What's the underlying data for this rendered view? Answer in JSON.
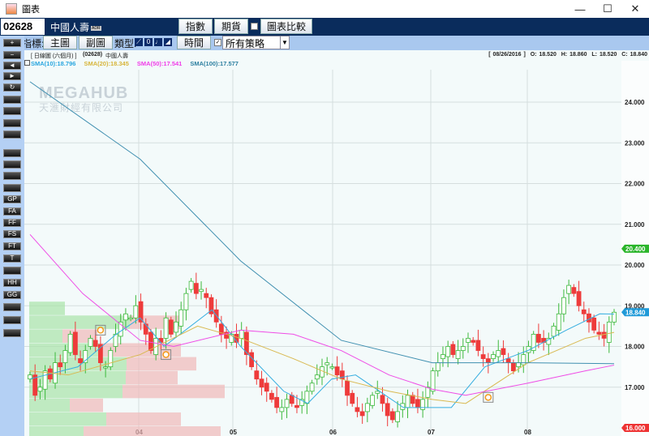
{
  "window": {
    "title": "圖表",
    "minimize": "—",
    "maximize": "☐",
    "close": "✕"
  },
  "header": {
    "code": "02628",
    "name": "中國人壽",
    "badge": "ADR",
    "index_btn": "指數",
    "futures_btn": "期貨",
    "compare_btn": "圖表比較",
    "compare_checked": false
  },
  "toolbar": {
    "indicator_label": "指標:",
    "main_btn": "主圖",
    "sub_btn": "副圖",
    "type_label": "類型:",
    "types": [
      "line-chart-icon",
      "0",
      "bar-icon",
      "area-icon"
    ],
    "time_btn": "時間",
    "strategy_checked": true,
    "strategy_value": "所有策略"
  },
  "sidebar": {
    "buttons": [
      "plus",
      "minus",
      "left",
      "right",
      "refresh",
      "zoom-in",
      "zoom-out",
      "save",
      "print",
      "ellipse",
      "rectangle",
      "line",
      "fibonacci",
      "gp",
      "fa",
      "ff",
      "fs",
      "ft",
      "t",
      "channel",
      "hh",
      "gg",
      "horizontal-line",
      "vertical-line",
      "text"
    ],
    "labels": {
      "plus": "+",
      "minus": "−",
      "left": "◄",
      "right": "►",
      "refresh": "↻",
      "gp": "GP",
      "fa": "FA",
      "ff": "FF",
      "fs": "FS",
      "ft": "FT",
      "t": "T",
      "hh": "HH",
      "gg": "GG"
    }
  },
  "chart_info": {
    "period": "[ 日線圖 (六個月) ]",
    "code": "(02628)",
    "name": "中國人壽",
    "date": "[ 08/26/2016 ]",
    "open": "O: 18.520",
    "high": "H: 18.860",
    "low": "L: 18.520",
    "close": "C: 18.840"
  },
  "sma_labels": [
    {
      "text": "SMA(10):18.796",
      "color": "#29a6df"
    },
    {
      "text": "SMA(20):18.345",
      "color": "#d7b53a"
    },
    {
      "text": "SMA(50):17.541",
      "color": "#f03ce8"
    },
    {
      "text": "SMA(100):17.577",
      "color": "#2d7fa0"
    }
  ],
  "watermark": {
    "brand": "MEGAHUB",
    "company": "天滙財經有限公司"
  },
  "chart_data": {
    "type": "candlestick",
    "ylim": [
      16,
      24.5
    ],
    "y_ticks": [
      "24.000",
      "23.000",
      "22.000",
      "21.000",
      "20.000",
      "19.000",
      "18.000",
      "17.000"
    ],
    "x_ticks": [
      "04",
      "05",
      "06",
      "07",
      "08"
    ],
    "badges": [
      {
        "text": "20.400",
        "value": 20.4,
        "color": "#2bb52b"
      },
      {
        "text": "18.840",
        "value": 18.84,
        "color": "#1f9ad8"
      },
      {
        "text": "16.000",
        "value": 16.0,
        "color": "#ee3333"
      }
    ],
    "close": [
      17.3,
      16.8,
      17.0,
      17.4,
      17.2,
      17.6,
      17.5,
      17.9,
      18.3,
      17.8,
      17.6,
      17.9,
      18.2,
      18.0,
      17.6,
      17.5,
      17.9,
      18.3,
      18.6,
      18.8,
      18.7,
      19.0,
      18.6,
      18.3,
      17.9,
      18.2,
      18.1,
      18.7,
      18.3,
      18.6,
      18.9,
      19.3,
      19.6,
      19.3,
      19.4,
      19.2,
      18.8,
      18.6,
      18.3,
      18.2,
      18.3,
      18.1,
      18.4,
      17.8,
      17.5,
      17.2,
      17.0,
      16.9,
      16.7,
      16.5,
      16.5,
      16.7,
      16.6,
      16.5,
      16.7,
      16.9,
      17.1,
      17.3,
      17.5,
      17.6,
      17.5,
      17.3,
      17.2,
      16.8,
      16.6,
      16.4,
      16.3,
      16.6,
      16.8,
      16.9,
      16.6,
      16.3,
      16.2,
      16.4,
      16.6,
      16.8,
      16.6,
      16.5,
      16.7,
      17.0,
      17.4,
      17.6,
      17.8,
      18.0,
      17.8,
      17.9,
      18.0,
      18.2,
      18.1,
      17.9,
      17.7,
      17.6,
      17.8,
      17.9,
      17.8,
      17.6,
      17.4,
      17.6,
      17.8,
      18.0,
      18.3,
      18.1,
      18.1,
      18.2,
      18.5,
      18.8,
      19.2,
      19.5,
      19.3,
      19.0,
      18.8,
      18.6,
      18.4,
      18.3,
      18.2,
      18.6,
      18.84
    ],
    "sma": [
      {
        "name": "SMA(10)",
        "color": "#36aee0",
        "points": [
          [
            0,
            17.2
          ],
          [
            10,
            17.5
          ],
          [
            18,
            18.3
          ],
          [
            23,
            18.7
          ],
          [
            28,
            18.0
          ],
          [
            38,
            18.9
          ],
          [
            44,
            18.0
          ],
          [
            53,
            16.9
          ],
          [
            58,
            16.6
          ],
          [
            63,
            17.2
          ],
          [
            68,
            17.3
          ],
          [
            78,
            16.5
          ],
          [
            88,
            16.5
          ],
          [
            95,
            17.5
          ],
          [
            104,
            17.9
          ],
          [
            112,
            18.4
          ],
          [
            119,
            18.8
          ],
          [
            122,
            18.796
          ]
        ]
      },
      {
        "name": "SMA(20)",
        "color": "#d9b950",
        "points": [
          [
            0,
            17.4
          ],
          [
            8,
            17.3
          ],
          [
            23,
            17.8
          ],
          [
            35,
            18.5
          ],
          [
            44,
            18.2
          ],
          [
            55,
            17.7
          ],
          [
            65,
            17.2
          ],
          [
            75,
            16.9
          ],
          [
            84,
            16.7
          ],
          [
            91,
            16.6
          ],
          [
            104,
            17.6
          ],
          [
            116,
            18.2
          ],
          [
            122,
            18.345
          ]
        ]
      },
      {
        "name": "SMA(50)",
        "color": "#ef4ce6",
        "points": [
          [
            0,
            20.75
          ],
          [
            11,
            19.3
          ],
          [
            23,
            18.15
          ],
          [
            30,
            18.0
          ],
          [
            44,
            18.4
          ],
          [
            55,
            18.3
          ],
          [
            65,
            17.9
          ],
          [
            75,
            17.3
          ],
          [
            84,
            16.95
          ],
          [
            91,
            16.8
          ],
          [
            104,
            17.1
          ],
          [
            116,
            17.4
          ],
          [
            122,
            17.541
          ]
        ]
      },
      {
        "name": "SMA(100)",
        "color": "#3f8fb0",
        "points": [
          [
            0,
            24.5
          ],
          [
            23,
            22.6
          ],
          [
            44,
            20.1
          ],
          [
            65,
            18.15
          ],
          [
            84,
            17.6
          ],
          [
            104,
            17.6
          ],
          [
            122,
            17.577
          ]
        ]
      }
    ],
    "volume_profile": [
      {
        "price": [
          18.76,
          19.1
        ],
        "buy": 44,
        "sell": 0
      },
      {
        "price": [
          18.42,
          18.76
        ],
        "buy": 124,
        "sell": 62
      },
      {
        "price": [
          18.08,
          18.42
        ],
        "buy": 41,
        "sell": 43
      },
      {
        "price": [
          17.74,
          18.08
        ],
        "buy": 87,
        "sell": 100
      },
      {
        "price": [
          17.4,
          17.74
        ],
        "buy": 120,
        "sell": 86
      },
      {
        "price": [
          17.06,
          17.4
        ],
        "buy": 119,
        "sell": 64
      },
      {
        "price": [
          16.72,
          17.06
        ],
        "buy": 115,
        "sell": 126
      },
      {
        "price": [
          16.38,
          16.72
        ],
        "buy": 50,
        "sell": 41
      },
      {
        "price": [
          16.04,
          16.38
        ],
        "buy": 95,
        "sell": 92
      },
      {
        "price": [
          15.7,
          16.04
        ],
        "buy": 67,
        "sell": 169
      }
    ],
    "signals": [
      {
        "index": 14,
        "value": 18.4
      },
      {
        "index": 27,
        "value": 17.8
      },
      {
        "index": 91,
        "value": 16.75
      }
    ]
  }
}
